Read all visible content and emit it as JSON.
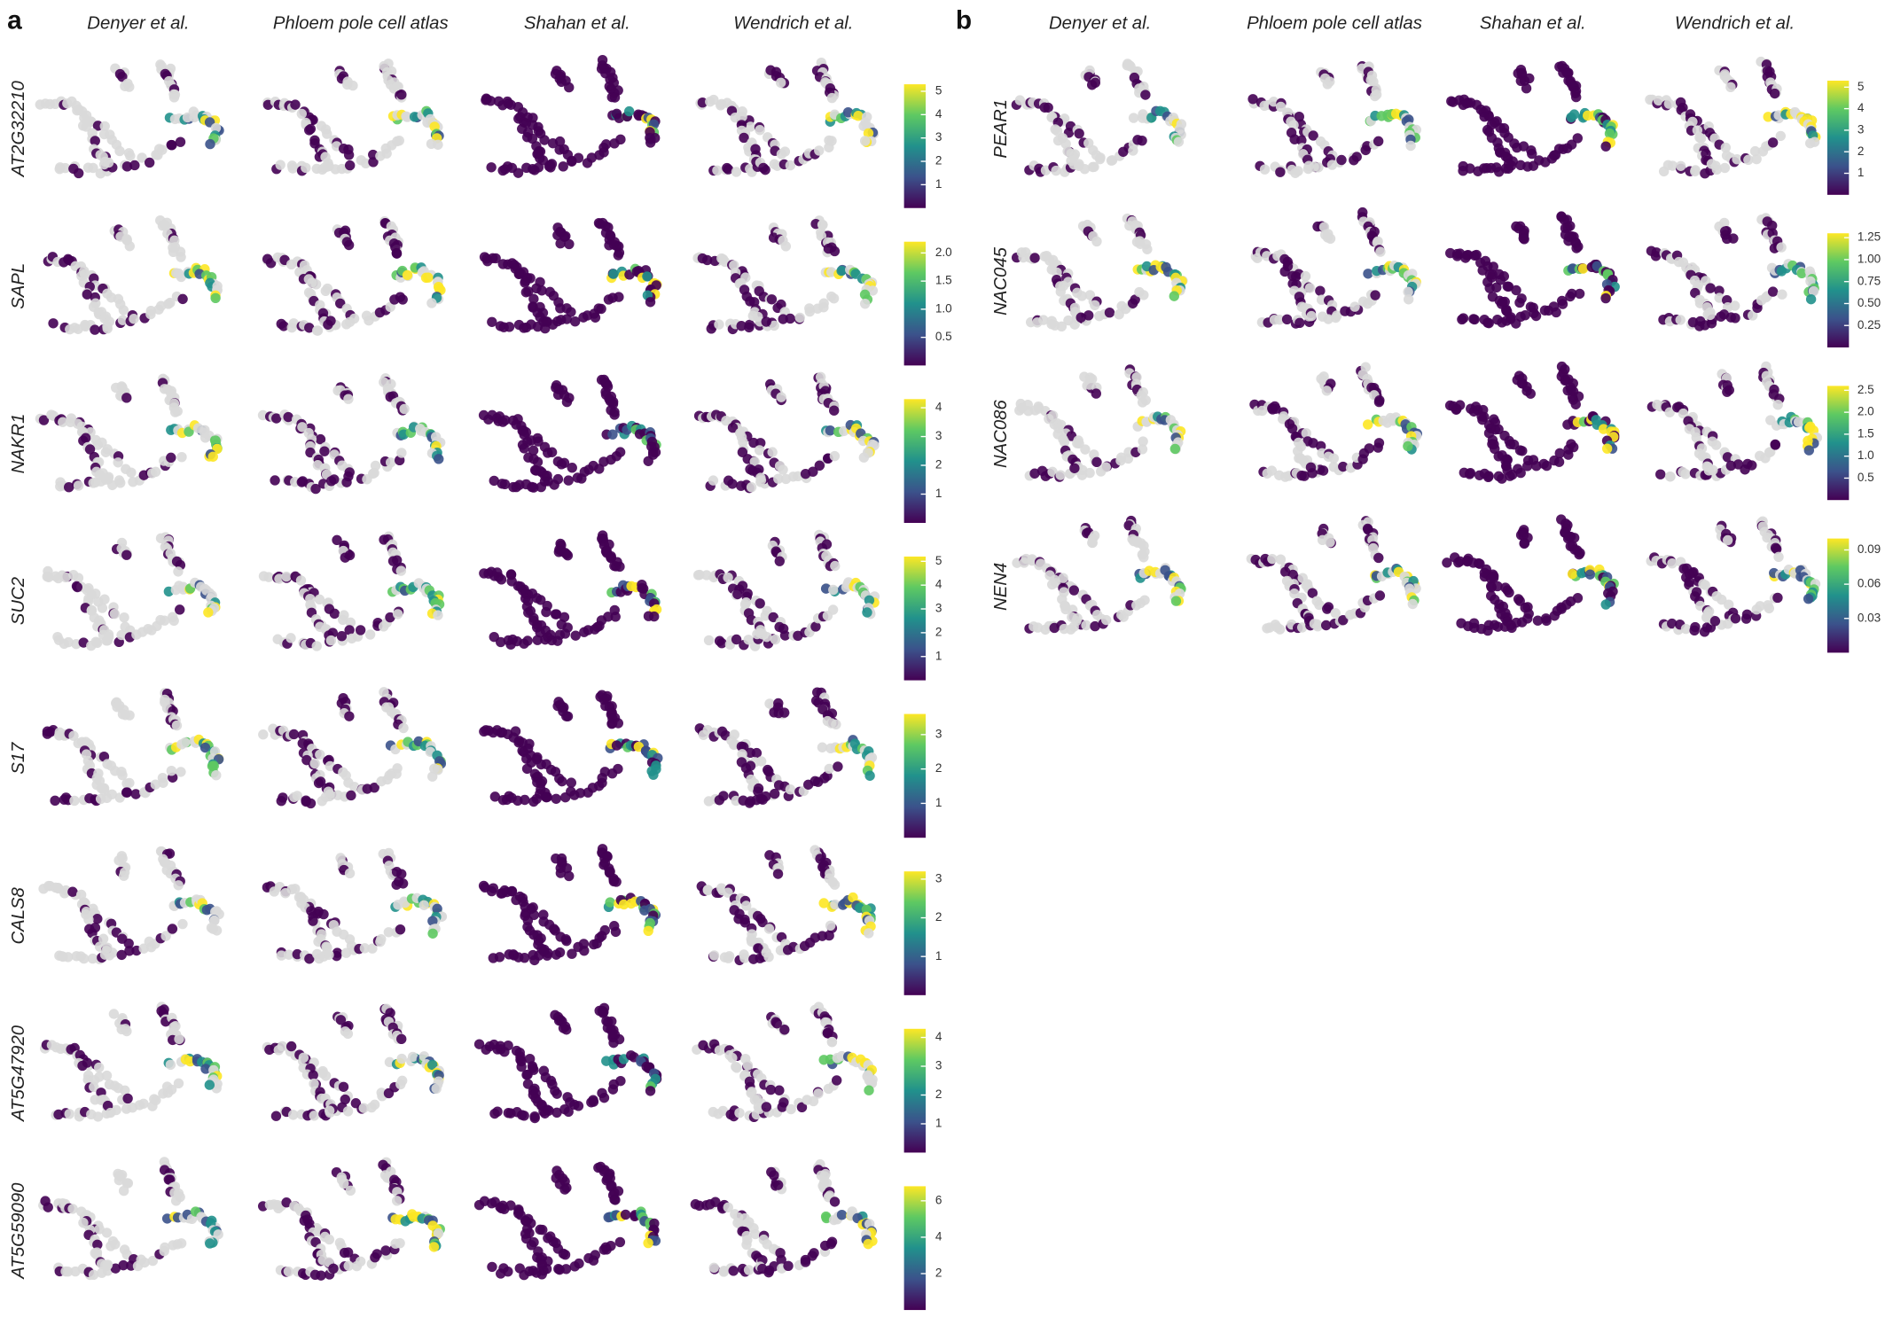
{
  "panels": [
    {
      "label": "a",
      "columns": [
        "Denyer et al.",
        "Phloem pole cell atlas",
        "Shahan et al.",
        "Wendrich et al."
      ],
      "rows": [
        {
          "gene": "AT2G32210",
          "colorbar": {
            "lim": [
              0,
              5.3
            ],
            "ticks": [
              1,
              2,
              3,
              4,
              5
            ]
          }
        },
        {
          "gene": "SAPL",
          "colorbar": {
            "lim": [
              0,
              2.2
            ],
            "ticks": [
              {
                "value": 0.5,
                "label": "0.5"
              },
              {
                "value": 1,
                "label": "1.0"
              },
              {
                "value": 1.5,
                "label": "1.5"
              },
              {
                "value": 2,
                "label": "2.0"
              }
            ]
          }
        },
        {
          "gene": "NAKR1",
          "colorbar": {
            "lim": [
              0,
              4.3
            ],
            "ticks": [
              1,
              2,
              3,
              4
            ]
          }
        },
        {
          "gene": "SUC2",
          "colorbar": {
            "lim": [
              0,
              5.2
            ],
            "ticks": [
              1,
              2,
              3,
              4,
              5
            ]
          }
        },
        {
          "gene": "S17",
          "colorbar": {
            "lim": [
              0,
              3.6
            ],
            "ticks": [
              1,
              2,
              3
            ]
          }
        },
        {
          "gene": "CALS8",
          "colorbar": {
            "lim": [
              0,
              3.2
            ],
            "ticks": [
              1,
              2,
              3
            ]
          }
        },
        {
          "gene": "AT5G47920",
          "colorbar": {
            "lim": [
              0,
              4.3
            ],
            "ticks": [
              1,
              2,
              3,
              4
            ]
          }
        },
        {
          "gene": "AT5G59090",
          "colorbar": {
            "lim": [
              0,
              6.8
            ],
            "ticks": [
              2,
              4,
              6
            ]
          }
        }
      ]
    },
    {
      "label": "b",
      "columns": [
        "Denyer et al.",
        "Phloem pole cell atlas",
        "Shahan et al.",
        "Wendrich et al."
      ],
      "rows": [
        {
          "gene": "PEAR1",
          "colorbar": {
            "lim": [
              0,
              5.3
            ],
            "ticks": [
              1,
              2,
              3,
              4,
              5
            ]
          }
        },
        {
          "gene": "NAC045",
          "colorbar": {
            "lim": [
              0,
              1.3
            ],
            "ticks": [
              {
                "value": 0.25,
                "label": "0.25"
              },
              {
                "value": 0.5,
                "label": "0.50"
              },
              {
                "value": 0.75,
                "label": "0.75"
              },
              {
                "value": 1,
                "label": "1.00"
              },
              {
                "value": 1.25,
                "label": "1.25"
              }
            ]
          }
        },
        {
          "gene": "NAC086",
          "colorbar": {
            "lim": [
              0,
              2.6
            ],
            "ticks": [
              {
                "value": 0.5,
                "label": "0.5"
              },
              {
                "value": 1,
                "label": "1.0"
              },
              {
                "value": 1.5,
                "label": "1.5"
              },
              {
                "value": 2,
                "label": "2.0"
              },
              {
                "value": 2.5,
                "label": "2.5"
              }
            ]
          }
        },
        {
          "gene": "NEN4",
          "colorbar": {
            "lim": [
              0,
              0.1
            ],
            "ticks": [
              0.03,
              0.06,
              0.09
            ]
          }
        }
      ]
    }
  ]
}
